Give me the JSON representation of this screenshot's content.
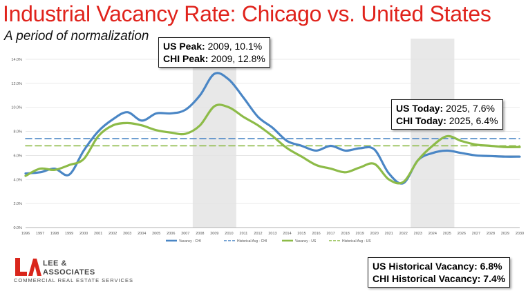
{
  "header": {
    "title": "Industrial Vacancy Rate: Chicago vs. United States",
    "subtitle": "A period of normalization"
  },
  "callouts": {
    "peak_us_label": "US Peak:",
    "peak_us_value": "2009, 10.1%",
    "peak_chi_label": "CHI Peak:",
    "peak_chi_value": "2009, 12.8%",
    "today_us_label": "US Today:",
    "today_us_value": "2025, 7.6%",
    "today_chi_label": "CHI Today:",
    "today_chi_value": "2025, 6.4%",
    "hist_us_label": "US Historical Vacancy:",
    "hist_us_value": "6.8%",
    "hist_chi_label": "CHI Historical Vacancy:",
    "hist_chi_value": "7.4%"
  },
  "logo": {
    "mark": "LA",
    "name_line1": "LEE &",
    "name_line2": "ASSOCIATES",
    "tagline": "COMMERCIAL REAL ESTATE SERVICES"
  },
  "colors": {
    "title": "#e0231c",
    "chi": "#4a86c5",
    "us": "#8dbb48",
    "shade": "#e8e8e8",
    "logo": "#d9261c"
  },
  "chart_data": {
    "type": "line",
    "title": "",
    "xlabel": "",
    "ylabel": "",
    "x": [
      "1996",
      "1997",
      "1998",
      "1999",
      "2000",
      "2001",
      "2002",
      "2003",
      "2004",
      "2005",
      "2006",
      "2007",
      "2008",
      "2009",
      "2010",
      "2011",
      "2012",
      "2013",
      "2014",
      "2015",
      "2016",
      "2017",
      "2018",
      "2019",
      "2020",
      "2021",
      "2022",
      "2023",
      "2024",
      "2025",
      "2026",
      "2027",
      "2028",
      "2029",
      "2030"
    ],
    "yticks": [
      "0.0%",
      "2.0%",
      "4.0%",
      "6.0%",
      "8.0%",
      "10.0%",
      "12.0%",
      "14.0%"
    ],
    "ylim": [
      0,
      14
    ],
    "grid": true,
    "legend_position": "bottom",
    "shaded_ranges": [
      [
        "2007.5",
        "2010.5"
      ],
      [
        "2022.5",
        "2025.5"
      ]
    ],
    "series": [
      {
        "name": "Vacancy - CHI",
        "color": "#4a86c5",
        "style": "solid",
        "values": [
          4.5,
          4.6,
          4.9,
          4.4,
          6.4,
          8.0,
          9.0,
          9.6,
          8.9,
          9.5,
          9.5,
          9.8,
          11.0,
          12.8,
          12.3,
          10.8,
          9.2,
          8.3,
          7.2,
          6.8,
          6.4,
          6.8,
          6.4,
          6.6,
          6.5,
          4.5,
          3.7,
          5.6,
          6.2,
          6.4,
          6.2,
          6.0,
          5.95,
          5.9,
          5.9
        ]
      },
      {
        "name": "Historical Avg - CHI",
        "color": "#4a86c5",
        "style": "dashed",
        "values": [
          7.4,
          7.4,
          7.4,
          7.4,
          7.4,
          7.4,
          7.4,
          7.4,
          7.4,
          7.4,
          7.4,
          7.4,
          7.4,
          7.4,
          7.4,
          7.4,
          7.4,
          7.4,
          7.4,
          7.4,
          7.4,
          7.4,
          7.4,
          7.4,
          7.4,
          7.4,
          7.4,
          7.4,
          7.4,
          7.4,
          7.4,
          7.4,
          7.4,
          7.4,
          7.4
        ]
      },
      {
        "name": "Vacancy - US",
        "color": "#8dbb48",
        "style": "solid",
        "values": [
          4.3,
          4.9,
          4.8,
          5.2,
          5.7,
          7.6,
          8.5,
          8.7,
          8.5,
          8.1,
          7.9,
          7.8,
          8.5,
          10.1,
          10.0,
          9.2,
          8.5,
          7.6,
          6.6,
          5.9,
          5.2,
          4.9,
          4.6,
          5.0,
          5.3,
          4.0,
          3.8,
          5.6,
          6.8,
          7.6,
          7.2,
          6.9,
          6.8,
          6.7,
          6.7
        ]
      },
      {
        "name": "Historical Avg - US",
        "color": "#8dbb48",
        "style": "dashed",
        "values": [
          6.8,
          6.8,
          6.8,
          6.8,
          6.8,
          6.8,
          6.8,
          6.8,
          6.8,
          6.8,
          6.8,
          6.8,
          6.8,
          6.8,
          6.8,
          6.8,
          6.8,
          6.8,
          6.8,
          6.8,
          6.8,
          6.8,
          6.8,
          6.8,
          6.8,
          6.8,
          6.8,
          6.8,
          6.8,
          6.8,
          6.8,
          6.8,
          6.8,
          6.8,
          6.8
        ]
      }
    ]
  }
}
